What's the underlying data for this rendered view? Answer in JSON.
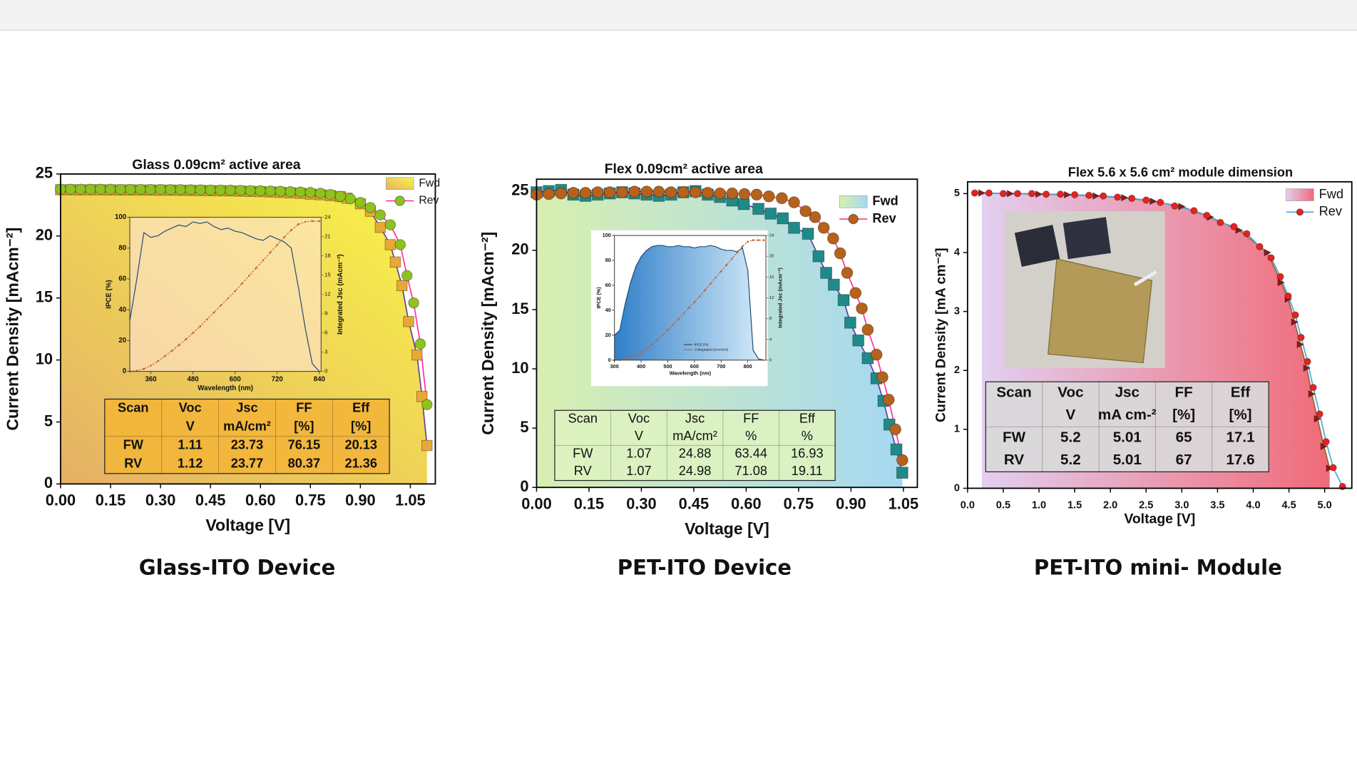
{
  "chart_data": [
    {
      "type": "line",
      "title": "Glass 0.09cm² active area",
      "xlabel": "Voltage [V]",
      "ylabel": "Current Density [mAcm⁻²]",
      "caption": "Glass-ITO Device",
      "xlim": [
        0,
        1.125
      ],
      "xticks": [
        {
          "value": 0,
          "label": "0.00"
        },
        0.15,
        {
          "value": 0.3,
          "label": "0.30"
        },
        0.45,
        {
          "value": 0.6,
          "label": "0.60"
        },
        0.75,
        {
          "value": 0.9,
          "label": "0.90"
        },
        1.05
      ],
      "ylim": [
        0,
        25
      ],
      "yticks": [
        0,
        5,
        10,
        15,
        20,
        25
      ],
      "area_colors": [
        "#e4b066",
        "#f9f448"
      ],
      "series": [
        {
          "name": "Fwd",
          "color": "#e8a838",
          "line_color": "#6a3fa0",
          "marker": "square",
          "area": true,
          "x": [
            0,
            0.03,
            0.06,
            0.09,
            0.12,
            0.15,
            0.18,
            0.21,
            0.24,
            0.27,
            0.3,
            0.33,
            0.36,
            0.39,
            0.42,
            0.45,
            0.48,
            0.51,
            0.54,
            0.57,
            0.6,
            0.63,
            0.66,
            0.69,
            0.72,
            0.75,
            0.78,
            0.81,
            0.84,
            0.86,
            0.9,
            0.93,
            0.96,
            0.99,
            1.005,
            1.025,
            1.045,
            1.07,
            1.085,
            1.1
          ],
          "values": [
            23.73,
            23.73,
            23.73,
            23.73,
            23.73,
            23.72,
            23.72,
            23.72,
            23.71,
            23.71,
            23.7,
            23.7,
            23.69,
            23.68,
            23.67,
            23.66,
            23.65,
            23.64,
            23.62,
            23.6,
            23.58,
            23.55,
            23.52,
            23.48,
            23.44,
            23.38,
            23.33,
            23.26,
            23.18,
            23.05,
            22.6,
            22.0,
            20.7,
            19.3,
            17.9,
            16.0,
            13.1,
            10.4,
            7.05,
            3.1
          ]
        },
        {
          "name": "Rev",
          "color": "#8dc21f",
          "line_color": "#ff3399",
          "marker": "circle",
          "x": [
            0,
            0.03,
            0.06,
            0.09,
            0.12,
            0.15,
            0.18,
            0.21,
            0.24,
            0.27,
            0.3,
            0.33,
            0.36,
            0.39,
            0.42,
            0.45,
            0.48,
            0.51,
            0.54,
            0.57,
            0.6,
            0.63,
            0.66,
            0.69,
            0.72,
            0.75,
            0.78,
            0.81,
            0.84,
            0.87,
            0.9,
            0.93,
            0.96,
            0.99,
            1.02,
            1.04,
            1.06,
            1.08,
            1.1
          ],
          "values": [
            23.77,
            23.77,
            23.77,
            23.77,
            23.77,
            23.77,
            23.76,
            23.76,
            23.76,
            23.75,
            23.75,
            23.74,
            23.74,
            23.73,
            23.72,
            23.71,
            23.7,
            23.69,
            23.68,
            23.66,
            23.65,
            23.63,
            23.61,
            23.58,
            23.55,
            23.51,
            23.45,
            23.35,
            23.2,
            23.0,
            22.7,
            22.3,
            21.7,
            20.9,
            19.3,
            16.8,
            14.6,
            11.3,
            6.4
          ]
        }
      ],
      "inset": {
        "xlabel": "Wavelength (nm)",
        "ylabel": "IPCE (%)",
        "y2label": "Integrated Jsc (mAcm⁻²)",
        "xlim": [
          300,
          845
        ],
        "xticks": [
          360,
          480,
          600,
          720,
          840
        ],
        "ylim": [
          0,
          100
        ],
        "yticks": [
          0,
          20,
          40,
          60,
          80,
          100
        ],
        "y2lim": [
          0,
          24
        ],
        "y2ticks": [
          0,
          3,
          6,
          9,
          12,
          15,
          18,
          21,
          24
        ],
        "x": [
          300,
          320,
          340,
          360,
          380,
          400,
          420,
          440,
          460,
          480,
          500,
          520,
          540,
          560,
          580,
          600,
          620,
          640,
          660,
          680,
          700,
          720,
          740,
          760,
          780,
          800,
          820,
          840
        ],
        "series": [
          {
            "color": "#1f4e79",
            "values": [
              33,
              60,
              90,
              87,
              88,
              91,
              93,
              95,
              94,
              97,
              96,
              97,
              94,
              92,
              93,
              91,
              90,
              88,
              86,
              85,
              88,
              86,
              84,
              80,
              55,
              28,
              5,
              0
            ]
          },
          {
            "color": "#c8602a",
            "axis": "y2",
            "marker": "dot",
            "values": [
              0,
              0.1,
              0.4,
              0.9,
              1.6,
              2.4,
              3.2,
              4.1,
              5.0,
              6.0,
              7.0,
              8.1,
              9.2,
              10.3,
              11.4,
              12.5,
              13.7,
              14.9,
              16.1,
              17.3,
              18.5,
              19.7,
              20.9,
              22.0,
              22.9,
              23.3,
              23.4,
              23.4
            ]
          }
        ]
      },
      "table": {
        "color": "#f2b53a",
        "header": [
          "Scan",
          "Voc",
          "Jsc",
          "FF",
          "Eff"
        ],
        "units": [
          "V",
          "mA/cm²",
          "[%]",
          "[%]"
        ],
        "rows": [
          [
            "FW",
            "1.11",
            "23.73",
            "76.15",
            "20.13"
          ],
          [
            "RV",
            "1.12",
            "23.77",
            "80.37",
            "21.36"
          ]
        ]
      }
    },
    {
      "type": "line",
      "title": "Flex 0.09cm² active area",
      "xlabel": "Voltage [V]",
      "ylabel": "Current Density [mAcm⁻²]",
      "caption": "PET-ITO Device",
      "xlim": [
        0,
        1.09
      ],
      "xticks": [
        {
          "value": 0,
          "label": "0.00"
        },
        0.15,
        {
          "value": 0.3,
          "label": "0.30"
        },
        0.45,
        {
          "value": 0.6,
          "label": "0.60"
        },
        0.75,
        {
          "value": 0.9,
          "label": "0.90"
        },
        1.05
      ],
      "ylim": [
        0,
        26
      ],
      "yticks": [
        0,
        5,
        10,
        15,
        20,
        25
      ],
      "area_colors": [
        "#d8efb0",
        "#a5d8f2"
      ],
      "series": [
        {
          "name": "Fwd",
          "color": "#1f8a8a",
          "line_color": "#5b3fa8",
          "marker": "square",
          "area": true,
          "x": [
            0,
            0.035,
            0.07,
            0.105,
            0.14,
            0.175,
            0.21,
            0.245,
            0.28,
            0.315,
            0.35,
            0.385,
            0.42,
            0.455,
            0.49,
            0.525,
            0.56,
            0.593,
            0.635,
            0.67,
            0.705,
            0.737,
            0.777,
            0.807,
            0.829,
            0.851,
            0.879,
            0.898,
            0.921,
            0.948,
            0.973,
            0.993,
            1.01,
            1.03,
            1.047
          ],
          "values": [
            24.9,
            25.0,
            25.1,
            24.7,
            24.6,
            24.7,
            24.8,
            24.9,
            24.8,
            24.7,
            24.6,
            24.7,
            24.9,
            25.0,
            24.7,
            24.5,
            24.2,
            23.9,
            23.5,
            23.1,
            22.7,
            21.9,
            21.4,
            19.5,
            18.1,
            17.1,
            15.8,
            13.9,
            12.4,
            10.9,
            9.2,
            7.3,
            5.3,
            3.2,
            1.24
          ]
        },
        {
          "name": "Rev",
          "color": "#b5621c",
          "line_color": "#ff3399",
          "marker": "circle",
          "x": [
            0,
            0.035,
            0.07,
            0.105,
            0.14,
            0.175,
            0.21,
            0.245,
            0.28,
            0.315,
            0.35,
            0.385,
            0.42,
            0.455,
            0.49,
            0.525,
            0.56,
            0.595,
            0.63,
            0.665,
            0.702,
            0.737,
            0.77,
            0.797,
            0.822,
            0.849,
            0.869,
            0.889,
            0.913,
            0.931,
            0.948,
            0.973,
            0.99,
            1.008,
            1.027,
            1.047
          ],
          "values": [
            24.7,
            24.75,
            24.8,
            24.85,
            24.85,
            24.9,
            24.9,
            24.9,
            24.95,
            24.95,
            24.95,
            24.9,
            24.9,
            24.9,
            24.85,
            24.8,
            24.8,
            24.75,
            24.7,
            24.55,
            24.4,
            24.05,
            23.3,
            22.8,
            21.9,
            21.0,
            19.75,
            18.1,
            16.4,
            15.1,
            13.3,
            11.2,
            9.3,
            7.4,
            4.9,
            2.3
          ]
        }
      ],
      "inset": {
        "xlabel": "Wavelength (nm)",
        "ylabel": "IPCE (%)",
        "y2label": "Integrated Jsc (mAcm⁻²)",
        "xlim": [
          300,
          868
        ],
        "xticks": [
          300,
          400,
          500,
          600,
          700,
          800
        ],
        "ylim": [
          0,
          100
        ],
        "yticks": [
          0,
          20,
          40,
          60,
          80,
          100
        ],
        "y2lim": [
          0,
          24
        ],
        "y2ticks": [
          0,
          4,
          8,
          12,
          16,
          20,
          24
        ],
        "area_colors": [
          "#2f7fc8",
          "#d7ecfa"
        ],
        "x": [
          300,
          320,
          340,
          360,
          380,
          400,
          420,
          440,
          460,
          480,
          500,
          520,
          540,
          560,
          580,
          600,
          620,
          640,
          660,
          680,
          700,
          720,
          740,
          760,
          780,
          800,
          820,
          840,
          860
        ],
        "series": [
          {
            "name": "IPCE (%)",
            "color": "#1f4e79",
            "area": true,
            "values": [
              20,
              24,
              45,
              62,
              75,
              83,
              88,
              91,
              92,
              92,
              91,
              91,
              92,
              91,
              91,
              90,
              91,
              91,
              92,
              91,
              89,
              88,
              88,
              87,
              90,
              72,
              8,
              1,
              0
            ]
          },
          {
            "name": "J Integrated (mA/cm2)",
            "color": "#c8602a",
            "axis": "y2",
            "marker": "dot",
            "values": [
              0,
              0.05,
              0.2,
              0.5,
              0.9,
              1.5,
              2.2,
              3.0,
              3.9,
              4.8,
              5.8,
              6.8,
              7.9,
              9.0,
              10.1,
              11.2,
              12.3,
              13.5,
              14.7,
              15.9,
              17.1,
              18.3,
              19.5,
              20.7,
              21.9,
              22.8,
              23.1,
              23.1,
              23.1
            ]
          }
        ]
      },
      "table": {
        "color": "#dcf2c0",
        "header": [
          "Scan",
          "Voc",
          "Jsc",
          "FF",
          "Eff"
        ],
        "units": [
          "V",
          "mA/cm²",
          "%",
          "%"
        ],
        "rows": [
          [
            "FW",
            "1.07",
            "24.88",
            "63.44",
            "16.93"
          ],
          [
            "RV",
            "1.07",
            "24.98",
            "71.08",
            "19.11"
          ]
        ]
      }
    },
    {
      "type": "line",
      "title": "Flex 5.6 x 5.6 cm² module dimension",
      "xlabel": "Voltage [V]",
      "ylabel": "Current Density [mA cm⁻²]",
      "caption": "PET-ITO  mini- Module",
      "xlim": [
        0,
        5.38
      ],
      "xticks": [
        {
          "value": 0,
          "label": "0.0"
        },
        0.5,
        {
          "value": 1,
          "label": "1.0"
        },
        1.5,
        {
          "value": 2,
          "label": "2.0"
        },
        2.5,
        {
          "value": 3,
          "label": "3.0"
        },
        3.5,
        {
          "value": 4,
          "label": "4.0"
        },
        4.5,
        {
          "value": 5,
          "label": "5.0"
        }
      ],
      "ylim": [
        0,
        5.2
      ],
      "yticks": [
        0,
        1,
        2,
        3,
        4,
        5
      ],
      "area_colors": [
        "#e2cff0",
        "#f06a78"
      ],
      "series": [
        {
          "name": "Fwd",
          "color": "#8b1a1a",
          "line_color": "#a0602a",
          "marker": "triangle",
          "area": true,
          "x": [
            0.2,
            0.6,
            1.0,
            1.4,
            1.8,
            2.2,
            2.6,
            3.0,
            3.4,
            3.8,
            4.2,
            4.39,
            4.49,
            4.58,
            4.66,
            4.75,
            4.82,
            4.9,
            4.99,
            5.07
          ],
          "values": [
            5.01,
            5.0,
            4.99,
            4.98,
            4.96,
            4.93,
            4.87,
            4.78,
            4.6,
            4.38,
            4.0,
            3.49,
            3.21,
            2.82,
            2.44,
            2.04,
            1.6,
            1.18,
            0.71,
            0.34
          ]
        },
        {
          "name": "Rev",
          "color": "#e8221e",
          "line_color": "#4aa8d8",
          "marker": "circle",
          "x": [
            0.1,
            0.3,
            0.5,
            0.7,
            0.9,
            1.1,
            1.3,
            1.5,
            1.7,
            1.9,
            2.1,
            2.3,
            2.5,
            2.7,
            2.9,
            3.17,
            3.35,
            3.54,
            3.73,
            3.91,
            4.09,
            4.25,
            4.38,
            4.49,
            4.59,
            4.67,
            4.76,
            4.84,
            4.93,
            5.02,
            5.12,
            5.25
          ],
          "values": [
            5.01,
            5.01,
            5.0,
            5.0,
            5.0,
            4.99,
            4.99,
            4.98,
            4.97,
            4.96,
            4.94,
            4.92,
            4.89,
            4.85,
            4.79,
            4.71,
            4.63,
            4.51,
            4.44,
            4.32,
            4.1,
            3.91,
            3.59,
            3.26,
            2.94,
            2.56,
            2.15,
            1.71,
            1.26,
            0.79,
            0.35,
            0.03
          ]
        }
      ],
      "table": {
        "color": "#d9d9d9",
        "header": [
          "Scan",
          "Voc",
          "Jsc",
          "FF",
          "Eff"
        ],
        "units": [
          "V",
          "mA cm-²",
          "[%]",
          "[%]"
        ],
        "rows": [
          [
            "FW",
            "5.2",
            "5.01",
            "65",
            "17.1"
          ],
          [
            "RV",
            "5.2",
            "5.01",
            "67",
            "17.6"
          ]
        ]
      }
    }
  ]
}
